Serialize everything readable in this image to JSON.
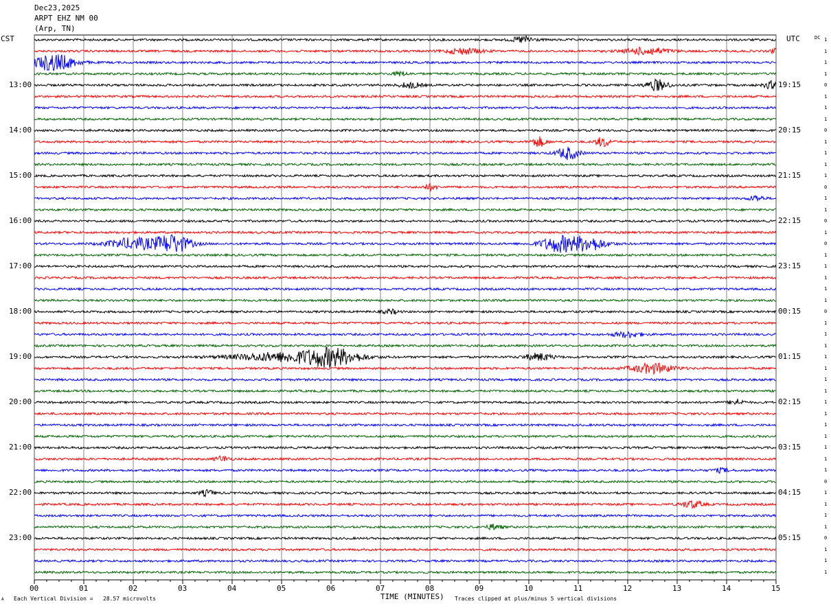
{
  "header": {
    "date": "Dec23,2025",
    "station": "ARPT EHZ NM 00",
    "location": "(Arp, TN)"
  },
  "left_tz": "CST",
  "right_tz": "UTC",
  "dc_label": "DC",
  "footer": {
    "scale": "Each Vertical Division =   28.57 microvolts",
    "clip": "Traces clipped at plus/minus 5 vertical divisions",
    "corner": "A"
  },
  "colors": {
    "cycle": [
      "#000000",
      "#ff0000",
      "#0000ff",
      "#006400"
    ],
    "grid": "#000000"
  },
  "chart_data": {
    "type": "line",
    "title": "",
    "xlabel": "TIME (MINUTES)",
    "ylabel": "",
    "xlim": [
      0,
      15
    ],
    "x_ticks": [
      "00",
      "01",
      "02",
      "03",
      "04",
      "05",
      "06",
      "07",
      "08",
      "09",
      "10",
      "11",
      "12",
      "13",
      "14",
      "15"
    ],
    "trace_count": 48,
    "traces_per_hour": 4,
    "left_hour_labels": [
      "13:00",
      "14:00",
      "15:00",
      "16:00",
      "17:00",
      "18:00",
      "19:00",
      "20:00",
      "21:00",
      "22:00",
      "23:00"
    ],
    "right_hour_labels": [
      "19:15",
      "20:15",
      "21:15",
      "22:15",
      "23:15",
      "00:15",
      "01:15",
      "02:15",
      "03:15",
      "04:15",
      "05:15"
    ],
    "dc_offsets": [
      "1",
      "1",
      "1",
      "1",
      "0",
      "1",
      "1",
      "1",
      "0",
      "1",
      "1",
      "1",
      "1",
      "0",
      "1",
      "1",
      "0",
      "1",
      "0",
      "1",
      "1",
      "1",
      "1",
      "1",
      "0",
      "1",
      "1",
      "1",
      "1",
      "1",
      "1",
      "1",
      "1",
      "1",
      "1",
      "1",
      "1",
      "1",
      "1",
      "0",
      "1",
      "1",
      "1",
      "1",
      "0",
      "1",
      "1",
      "1"
    ],
    "events": [
      {
        "trace": 0,
        "minute": 9.9,
        "amp": 5,
        "width": 0.3
      },
      {
        "trace": 1,
        "minute": 8.7,
        "amp": 4,
        "width": 0.5
      },
      {
        "trace": 1,
        "minute": 12.4,
        "amp": 5,
        "width": 0.6
      },
      {
        "trace": 1,
        "minute": 15.0,
        "amp": 7,
        "width": 0.1
      },
      {
        "trace": 2,
        "minute": 0.4,
        "amp": 12,
        "width": 0.6
      },
      {
        "trace": 3,
        "minute": 7.4,
        "amp": 3,
        "width": 0.2
      },
      {
        "trace": 4,
        "minute": 7.6,
        "amp": 4,
        "width": 0.3
      },
      {
        "trace": 4,
        "minute": 12.6,
        "amp": 8,
        "width": 0.3
      },
      {
        "trace": 4,
        "minute": 14.9,
        "amp": 5,
        "width": 0.2
      },
      {
        "trace": 9,
        "minute": 10.2,
        "amp": 7,
        "width": 0.2
      },
      {
        "trace": 9,
        "minute": 11.5,
        "amp": 7,
        "width": 0.2
      },
      {
        "trace": 10,
        "minute": 10.8,
        "amp": 9,
        "width": 0.3
      },
      {
        "trace": 13,
        "minute": 8.0,
        "amp": 4,
        "width": 0.2
      },
      {
        "trace": 14,
        "minute": 14.6,
        "amp": 4,
        "width": 0.2
      },
      {
        "trace": 18,
        "minute": 2.0,
        "amp": 8,
        "width": 0.7
      },
      {
        "trace": 18,
        "minute": 2.8,
        "amp": 13,
        "width": 0.5
      },
      {
        "trace": 18,
        "minute": 10.6,
        "amp": 11,
        "width": 0.5
      },
      {
        "trace": 18,
        "minute": 11.2,
        "amp": 10,
        "width": 0.5
      },
      {
        "trace": 24,
        "minute": 7.2,
        "amp": 3,
        "width": 0.2
      },
      {
        "trace": 26,
        "minute": 12.0,
        "amp": 4,
        "width": 0.4
      },
      {
        "trace": 28,
        "minute": 5.0,
        "amp": 6,
        "width": 1.4
      },
      {
        "trace": 28,
        "minute": 6.0,
        "amp": 12,
        "width": 0.8
      },
      {
        "trace": 28,
        "minute": 10.2,
        "amp": 5,
        "width": 0.4
      },
      {
        "trace": 29,
        "minute": 12.5,
        "amp": 7,
        "width": 0.6
      },
      {
        "trace": 32,
        "minute": 14.2,
        "amp": 4,
        "width": 0.2
      },
      {
        "trace": 37,
        "minute": 3.8,
        "amp": 4,
        "width": 0.2
      },
      {
        "trace": 38,
        "minute": 13.9,
        "amp": 3,
        "width": 0.2
      },
      {
        "trace": 40,
        "minute": 3.5,
        "amp": 4,
        "width": 0.2
      },
      {
        "trace": 41,
        "minute": 13.3,
        "amp": 5,
        "width": 0.3
      },
      {
        "trace": 43,
        "minute": 9.3,
        "amp": 4,
        "width": 0.2
      }
    ]
  }
}
